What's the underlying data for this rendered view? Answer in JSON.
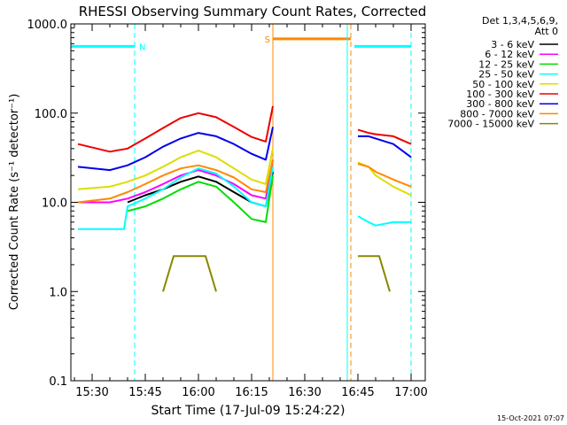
{
  "chart_data": {
    "type": "line",
    "title": "RHESSI Observing Summary Count Rates, Corrected",
    "xlabel": "Start Time (17-Jul-09 15:24:22)",
    "ylabel": "Corrected Count Rate (s⁻¹ detector⁻¹)",
    "y_scale": "log",
    "ylim": [
      0.1,
      1000
    ],
    "xlim": [
      "15:24",
      "17:04"
    ],
    "x_ticks": [
      "15:30",
      "15:45",
      "16:00",
      "16:15",
      "16:30",
      "16:45",
      "17:00"
    ],
    "y_ticks": [
      "0.1",
      "1.0",
      "10.0",
      "100.0",
      "1000.0"
    ],
    "legend": {
      "placement": "top-right",
      "header": [
        "Det 1,3,4,5,6,9,",
        "Att 0"
      ],
      "entries": [
        {
          "label": "3 - 6 keV",
          "color": "#000000"
        },
        {
          "label": "6 - 12 keV",
          "color": "#ff00ff"
        },
        {
          "label": "12 - 25 keV",
          "color": "#00dd00"
        },
        {
          "label": "25 - 50 keV",
          "color": "#00ffff"
        },
        {
          "label": "50 - 100 keV",
          "color": "#dddd00"
        },
        {
          "label": "100 - 300 keV",
          "color": "#ee0000"
        },
        {
          "label": "300 - 800 keV",
          "color": "#0000ee"
        },
        {
          "label": "800 - 7000 keV",
          "color": "#ff8800"
        },
        {
          "label": "7000 - 15000 keV",
          "color": "#888800"
        }
      ]
    },
    "series": [
      {
        "name": "3 - 6 keV",
        "color": "#000000",
        "x": [
          "15:40",
          "15:45",
          "15:50",
          "15:55",
          "16:00",
          "16:05",
          "16:10",
          "16:15",
          "16:19",
          "16:21"
        ],
        "y": [
          10,
          12,
          14,
          17,
          19.5,
          17,
          13,
          10,
          9,
          22
        ]
      },
      {
        "name": "6 - 12 keV",
        "color": "#ff00ff",
        "x": [
          "15:26",
          "15:35",
          "15:40",
          "15:45",
          "15:50",
          "15:55",
          "16:00",
          "16:05",
          "16:10",
          "16:15",
          "16:19",
          "16:21"
        ],
        "y": [
          10,
          10,
          11,
          13,
          16,
          20,
          23,
          20,
          16,
          12,
          11,
          30
        ]
      },
      {
        "name": "12 - 25 keV",
        "color": "#00dd00",
        "x": [
          "15:40",
          "15:45",
          "15:50",
          "15:55",
          "16:00",
          "16:05",
          "16:10",
          "16:15",
          "16:19",
          "16:21"
        ],
        "y": [
          8,
          9,
          11,
          14,
          17,
          15,
          10,
          6.5,
          6,
          20
        ]
      },
      {
        "name": "25 - 50 keV",
        "color": "#00ffff",
        "x": [
          "15:26",
          "15:35",
          "15:39",
          "15:40",
          "15:45",
          "15:50",
          "15:55",
          "16:00",
          "16:05",
          "16:10",
          "16:15",
          "16:19",
          "16:21"
        ],
        "y": [
          5,
          5,
          5,
          9,
          11,
          14,
          19,
          24,
          21,
          15,
          10,
          9,
          25
        ],
        "x2": [
          "16:45",
          "16:48",
          "16:50",
          "16:55",
          "17:00"
        ],
        "y2": [
          7,
          6,
          5.5,
          6,
          6
        ]
      },
      {
        "name": "50 - 100 keV",
        "color": "#dddd00",
        "x": [
          "15:26",
          "15:35",
          "15:40",
          "15:45",
          "15:50",
          "15:55",
          "16:00",
          "16:05",
          "16:10",
          "16:15",
          "16:19",
          "16:21"
        ],
        "y": [
          14,
          15,
          17,
          20,
          25,
          32,
          38,
          32,
          24,
          18,
          16,
          40
        ],
        "x2": [
          "16:45",
          "16:48",
          "16:50",
          "16:55",
          "17:00"
        ],
        "y2": [
          28,
          25,
          20,
          15,
          12
        ]
      },
      {
        "name": "100 - 300 keV",
        "color": "#ee0000",
        "x": [
          "15:26",
          "15:35",
          "15:40",
          "15:45",
          "15:50",
          "15:55",
          "16:00",
          "16:05",
          "16:10",
          "16:15",
          "16:19",
          "16:21"
        ],
        "y": [
          45,
          37,
          40,
          52,
          68,
          88,
          100,
          90,
          70,
          54,
          48,
          120
        ],
        "x2": [
          "16:45",
          "16:48",
          "16:50",
          "16:55",
          "17:00"
        ],
        "y2": [
          65,
          60,
          58,
          55,
          45
        ]
      },
      {
        "name": "300 - 800 keV",
        "color": "#0000ee",
        "x": [
          "15:26",
          "15:35",
          "15:40",
          "15:45",
          "15:50",
          "15:55",
          "16:00",
          "16:05",
          "16:10",
          "16:15",
          "16:19",
          "16:21"
        ],
        "y": [
          25,
          23,
          26,
          32,
          42,
          52,
          60,
          55,
          45,
          35,
          30,
          70
        ],
        "x2": [
          "16:45",
          "16:48",
          "16:50",
          "16:55",
          "17:00"
        ],
        "y2": [
          55,
          55,
          52,
          45,
          32
        ]
      },
      {
        "name": "800 - 7000 keV",
        "color": "#ff8800",
        "x": [
          "15:26",
          "15:35",
          "15:40",
          "15:45",
          "15:50",
          "15:55",
          "16:00",
          "16:05",
          "16:10",
          "16:15",
          "16:19",
          "16:21"
        ],
        "y": [
          10,
          11,
          13,
          16,
          20,
          24,
          26,
          23,
          19,
          14,
          13,
          30
        ],
        "x2": [
          "16:45",
          "16:48",
          "16:50",
          "16:55",
          "17:00"
        ],
        "y2": [
          27,
          25,
          22,
          18,
          15
        ]
      },
      {
        "name": "7000 - 15000 keV",
        "color": "#888800",
        "x": [
          "15:50",
          "15:53",
          "15:56",
          "15:59",
          "16:02",
          "16:05"
        ],
        "y": [
          1.0,
          2.5,
          2.5,
          2.5,
          2.5,
          1.0
        ],
        "x2": [
          "16:45",
          "16:48",
          "16:51",
          "16:54"
        ],
        "y2": [
          2.5,
          2.5,
          2.5,
          1.0
        ]
      }
    ],
    "annotations": [
      {
        "type": "segment",
        "label": "N",
        "color": "#00ffff",
        "x0": "15:24",
        "x1": "15:42",
        "y": 560
      },
      {
        "type": "segment",
        "label": "",
        "color": "#00ffff",
        "x0": "16:44",
        "x1": "17:00",
        "y": 560
      },
      {
        "type": "segment",
        "label": "S",
        "color": "#ff8800",
        "x0": "16:21",
        "x1": "16:43",
        "y": 680
      },
      {
        "type": "vline",
        "color": "#00ffff",
        "x": "15:24",
        "style": "solid"
      },
      {
        "type": "vline",
        "color": "#00ffff",
        "x": "15:42",
        "style": "dashed"
      },
      {
        "type": "vline",
        "color": "#ff8800",
        "x": "16:21",
        "style": "solid"
      },
      {
        "type": "vline",
        "color": "#00ffff",
        "x": "16:42",
        "style": "solid"
      },
      {
        "type": "vline",
        "color": "#ff8800",
        "x": "16:43",
        "style": "dashed"
      },
      {
        "type": "vline",
        "color": "#00ffff",
        "x": "17:00",
        "style": "dashed"
      }
    ],
    "footer_date": "15-Oct-2021 07:07",
    "grid": false
  }
}
